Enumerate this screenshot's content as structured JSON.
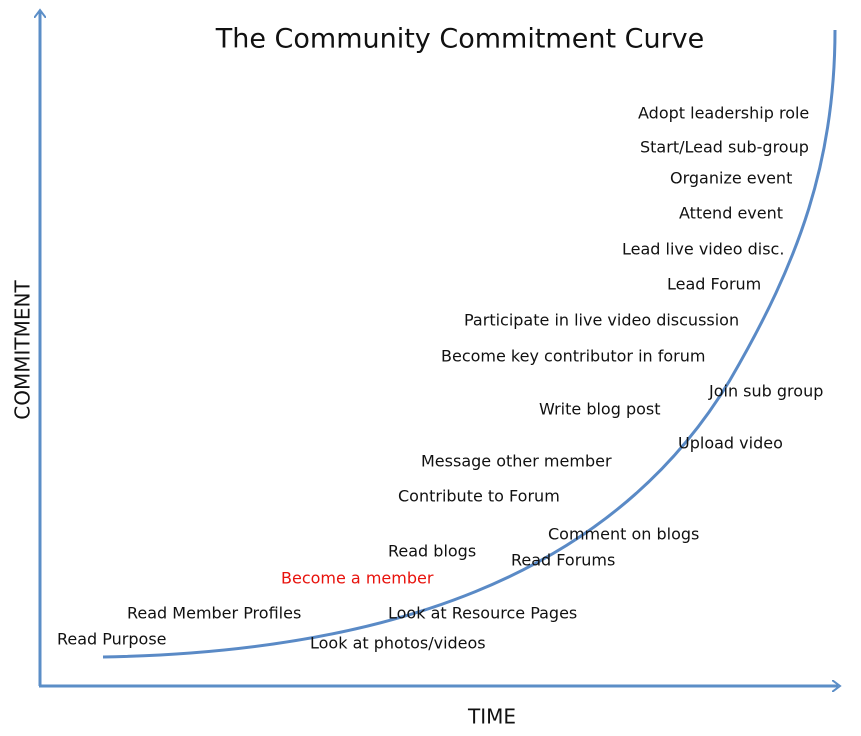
{
  "title": "The Community Commitment Curve",
  "y_axis_label": "COMMITMENT",
  "x_axis_label": "TIME",
  "nodes": [
    {
      "label": "Read Purpose"
    },
    {
      "label": "Read Member Profiles"
    },
    {
      "label": "Look at photos/videos"
    },
    {
      "label": "Look at Resource Pages"
    },
    {
      "label": "Become a member",
      "color": "#e8120c"
    },
    {
      "label": "Read blogs"
    },
    {
      "label": "Read Forums"
    },
    {
      "label": "Comment on blogs"
    },
    {
      "label": "Contribute to Forum"
    },
    {
      "label": "Message other member"
    },
    {
      "label": "Upload video"
    },
    {
      "label": "Write blog post"
    },
    {
      "label": "Join sub group"
    },
    {
      "label": "Become key contributor in forum"
    },
    {
      "label": "Participate in live video discussion"
    },
    {
      "label": "Lead Forum"
    },
    {
      "label": "Lead live video disc."
    },
    {
      "label": "Attend event"
    },
    {
      "label": "Organize event"
    },
    {
      "label": "Start/Lead sub-group"
    },
    {
      "label": "Adopt leadership role"
    }
  ]
}
